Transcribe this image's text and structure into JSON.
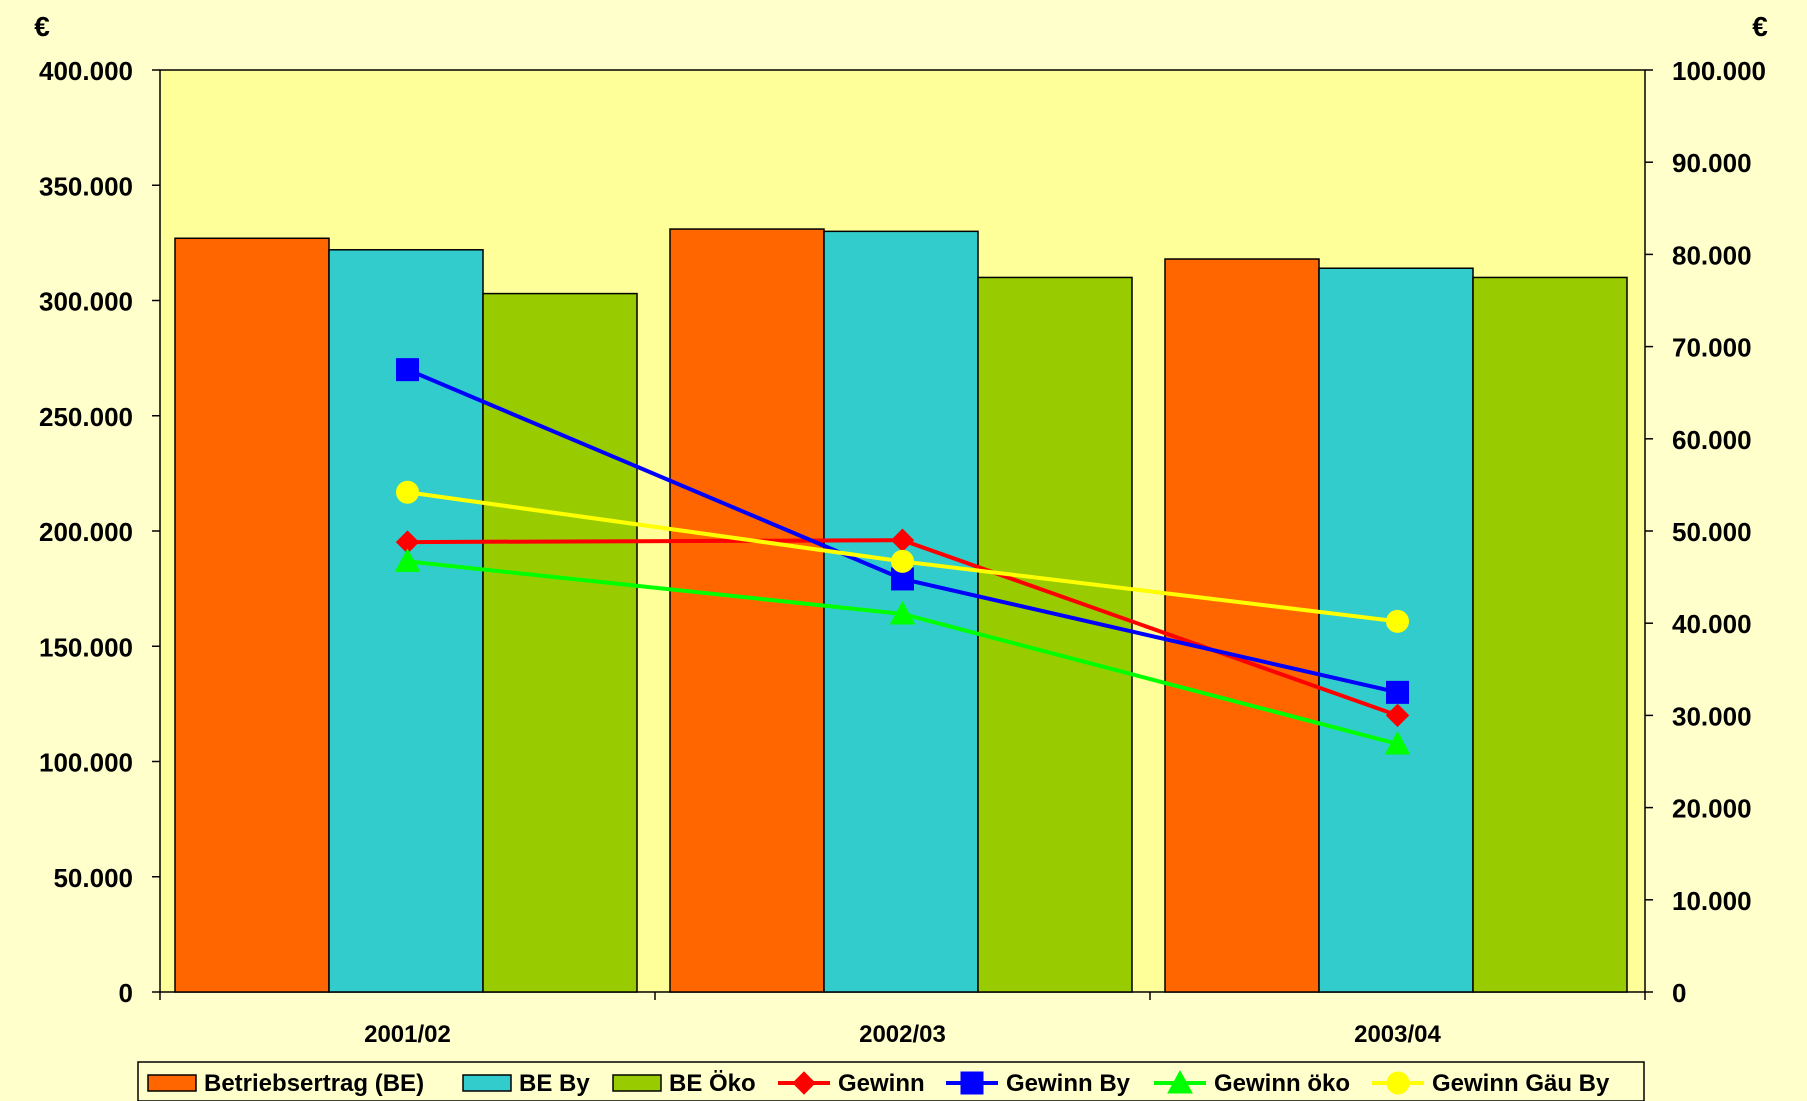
{
  "chart_data": {
    "type": "bar+line",
    "categories": [
      "2001/02",
      "2002/03",
      "2003/04"
    ],
    "left_axis": {
      "unit": "€",
      "ylim": [
        0,
        400000
      ],
      "ticks": [
        "0",
        "50.000",
        "100.000",
        "150.000",
        "200.000",
        "250.000",
        "300.000",
        "350.000",
        "400.000"
      ],
      "tick_values": [
        0,
        50000,
        100000,
        150000,
        200000,
        250000,
        300000,
        350000,
        400000
      ]
    },
    "right_axis": {
      "unit": "€",
      "ylim": [
        0,
        100000
      ],
      "ticks": [
        "0",
        "10.000",
        "20.000",
        "30.000",
        "40.000",
        "50.000",
        "60.000",
        "70.000",
        "80.000",
        "90.000",
        "100.000"
      ],
      "tick_values": [
        0,
        10000,
        20000,
        30000,
        40000,
        50000,
        60000,
        70000,
        80000,
        90000,
        100000
      ]
    },
    "bar_series": [
      {
        "name": "Betriebsertrag (BE)",
        "color": "#ff6600",
        "values": [
          327000,
          331000,
          318000
        ]
      },
      {
        "name": "BE By",
        "color": "#33cccc",
        "values": [
          322000,
          330000,
          314000
        ]
      },
      {
        "name": "BE Öko",
        "color": "#99cc00",
        "values": [
          303000,
          310000,
          310000
        ]
      }
    ],
    "line_series": [
      {
        "name": "Gewinn",
        "color": "#ff0000",
        "marker": "diamond",
        "values": [
          48800,
          49000,
          30000
        ]
      },
      {
        "name": "Gewinn By",
        "color": "#0000ff",
        "marker": "square",
        "values": [
          67500,
          44800,
          32500
        ]
      },
      {
        "name": "Gewinn öko",
        "color": "#00ff00",
        "marker": "triangle",
        "values": [
          46700,
          41000,
          26900
        ]
      },
      {
        "name": "Gewinn Gäu By",
        "color": "#ffff00",
        "marker": "circle",
        "values": [
          54200,
          46700,
          40200
        ]
      }
    ],
    "plot_background": "#ffff99",
    "page_background": "#ffffcc",
    "grid": false,
    "legend_position": "bottom"
  }
}
